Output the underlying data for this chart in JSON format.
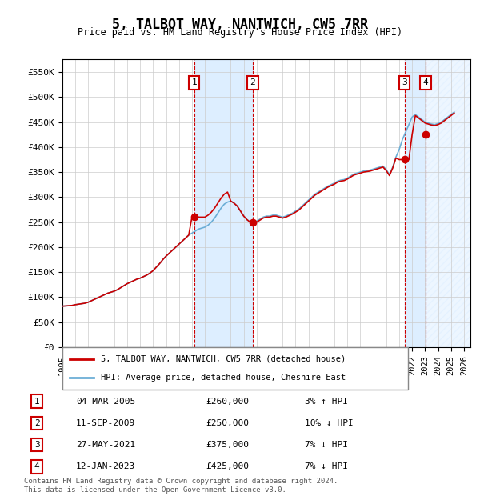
{
  "title": "5, TALBOT WAY, NANTWICH, CW5 7RR",
  "subtitle": "Price paid vs. HM Land Registry's House Price Index (HPI)",
  "ylabel": "",
  "ylim": [
    0,
    575000
  ],
  "yticks": [
    0,
    50000,
    100000,
    150000,
    200000,
    250000,
    300000,
    350000,
    400000,
    450000,
    500000,
    550000
  ],
  "ytick_labels": [
    "£0",
    "£50K",
    "£100K",
    "£150K",
    "£200K",
    "£250K",
    "£300K",
    "£350K",
    "£400K",
    "£450K",
    "£500K",
    "£550K"
  ],
  "xlim_start": 1995.0,
  "xlim_end": 2026.5,
  "xtick_years": [
    1995,
    1996,
    1997,
    1998,
    1999,
    2000,
    2001,
    2002,
    2003,
    2004,
    2005,
    2006,
    2007,
    2008,
    2009,
    2010,
    2011,
    2012,
    2013,
    2014,
    2015,
    2016,
    2017,
    2018,
    2019,
    2020,
    2021,
    2022,
    2023,
    2024,
    2025,
    2026
  ],
  "hpi_color": "#6baed6",
  "price_color": "#cc0000",
  "sale_marker_color": "#cc0000",
  "grid_color": "#cccccc",
  "background_color": "#ffffff",
  "sale_highlight_color": "#ddeeff",
  "legend_label_price": "5, TALBOT WAY, NANTWICH, CW5 7RR (detached house)",
  "legend_label_hpi": "HPI: Average price, detached house, Cheshire East",
  "transactions": [
    {
      "num": 1,
      "date": "04-MAR-2005",
      "year": 2005.17,
      "price": 260000,
      "hpi_pct": "3%",
      "dir": "↑"
    },
    {
      "num": 2,
      "date": "11-SEP-2009",
      "year": 2009.69,
      "price": 250000,
      "hpi_pct": "10%",
      "dir": "↓"
    },
    {
      "num": 3,
      "date": "27-MAY-2021",
      "year": 2021.41,
      "price": 375000,
      "hpi_pct": "7%",
      "dir": "↓"
    },
    {
      "num": 4,
      "date": "12-JAN-2023",
      "year": 2023.04,
      "price": 425000,
      "hpi_pct": "7%",
      "dir": "↓"
    }
  ],
  "footer": "Contains HM Land Registry data © Crown copyright and database right 2024.\nThis data is licensed under the Open Government Licence v3.0.",
  "hpi_data_x": [
    1995.0,
    1995.25,
    1995.5,
    1995.75,
    1996.0,
    1996.25,
    1996.5,
    1996.75,
    1997.0,
    1997.25,
    1997.5,
    1997.75,
    1998.0,
    1998.25,
    1998.5,
    1998.75,
    1999.0,
    1999.25,
    1999.5,
    1999.75,
    2000.0,
    2000.25,
    2000.5,
    2000.75,
    2001.0,
    2001.25,
    2001.5,
    2001.75,
    2002.0,
    2002.25,
    2002.5,
    2002.75,
    2003.0,
    2003.25,
    2003.5,
    2003.75,
    2004.0,
    2004.25,
    2004.5,
    2004.75,
    2005.0,
    2005.25,
    2005.5,
    2005.75,
    2006.0,
    2006.25,
    2006.5,
    2006.75,
    2007.0,
    2007.25,
    2007.5,
    2007.75,
    2008.0,
    2008.25,
    2008.5,
    2008.75,
    2009.0,
    2009.25,
    2009.5,
    2009.75,
    2010.0,
    2010.25,
    2010.5,
    2010.75,
    2011.0,
    2011.25,
    2011.5,
    2011.75,
    2012.0,
    2012.25,
    2012.5,
    2012.75,
    2013.0,
    2013.25,
    2013.5,
    2013.75,
    2014.0,
    2014.25,
    2014.5,
    2014.75,
    2015.0,
    2015.25,
    2015.5,
    2015.75,
    2016.0,
    2016.25,
    2016.5,
    2016.75,
    2017.0,
    2017.25,
    2017.5,
    2017.75,
    2018.0,
    2018.25,
    2018.5,
    2018.75,
    2019.0,
    2019.25,
    2019.5,
    2019.75,
    2020.0,
    2020.25,
    2020.5,
    2020.75,
    2021.0,
    2021.25,
    2021.5,
    2021.75,
    2022.0,
    2022.25,
    2022.5,
    2022.75,
    2023.0,
    2023.25,
    2023.5,
    2023.75,
    2024.0,
    2024.25,
    2024.5,
    2024.75,
    2025.0,
    2025.25
  ],
  "hpi_data_y": [
    82000,
    82500,
    83000,
    83500,
    85000,
    86000,
    87000,
    88000,
    90000,
    93000,
    96000,
    99000,
    102000,
    105000,
    108000,
    110000,
    112000,
    115000,
    119000,
    123000,
    127000,
    130000,
    133000,
    136000,
    138000,
    141000,
    144000,
    148000,
    153000,
    160000,
    167000,
    175000,
    182000,
    188000,
    194000,
    200000,
    206000,
    212000,
    218000,
    224000,
    228000,
    232000,
    236000,
    238000,
    240000,
    244000,
    250000,
    258000,
    268000,
    278000,
    286000,
    290000,
    292000,
    288000,
    282000,
    272000,
    262000,
    255000,
    250000,
    248000,
    252000,
    256000,
    260000,
    262000,
    262000,
    264000,
    264000,
    262000,
    260000,
    262000,
    265000,
    268000,
    272000,
    276000,
    282000,
    288000,
    294000,
    300000,
    306000,
    310000,
    314000,
    318000,
    322000,
    325000,
    328000,
    332000,
    334000,
    335000,
    338000,
    342000,
    346000,
    348000,
    350000,
    352000,
    353000,
    354000,
    356000,
    358000,
    360000,
    362000,
    355000,
    345000,
    360000,
    380000,
    395000,
    415000,
    430000,
    445000,
    460000,
    465000,
    460000,
    455000,
    450000,
    448000,
    446000,
    445000,
    447000,
    450000,
    455000,
    460000,
    465000,
    470000
  ],
  "price_data_x": [
    1995.0,
    1995.25,
    1995.5,
    1995.75,
    1996.0,
    1996.25,
    1996.5,
    1996.75,
    1997.0,
    1997.25,
    1997.5,
    1997.75,
    1998.0,
    1998.25,
    1998.5,
    1998.75,
    1999.0,
    1999.25,
    1999.5,
    1999.75,
    2000.0,
    2000.25,
    2000.5,
    2000.75,
    2001.0,
    2001.25,
    2001.5,
    2001.75,
    2002.0,
    2002.25,
    2002.5,
    2002.75,
    2003.0,
    2003.25,
    2003.5,
    2003.75,
    2004.0,
    2004.25,
    2004.5,
    2004.75,
    2005.0,
    2005.25,
    2005.5,
    2005.75,
    2006.0,
    2006.25,
    2006.5,
    2006.75,
    2007.0,
    2007.25,
    2007.5,
    2007.75,
    2008.0,
    2008.25,
    2008.5,
    2008.75,
    2009.0,
    2009.25,
    2009.5,
    2009.75,
    2010.0,
    2010.25,
    2010.5,
    2010.75,
    2011.0,
    2011.25,
    2011.5,
    2011.75,
    2012.0,
    2012.25,
    2012.5,
    2012.75,
    2013.0,
    2013.25,
    2013.5,
    2013.75,
    2014.0,
    2014.25,
    2014.5,
    2014.75,
    2015.0,
    2015.25,
    2015.5,
    2015.75,
    2016.0,
    2016.25,
    2016.5,
    2016.75,
    2017.0,
    2017.25,
    2017.5,
    2017.75,
    2018.0,
    2018.25,
    2018.5,
    2018.75,
    2019.0,
    2019.25,
    2019.5,
    2019.75,
    2020.0,
    2020.25,
    2020.5,
    2020.75,
    2021.0,
    2021.25,
    2021.5,
    2021.75,
    2022.0,
    2022.25,
    2022.5,
    2022.75,
    2023.0,
    2023.25,
    2023.5,
    2023.75,
    2024.0,
    2024.25,
    2024.5,
    2024.75,
    2025.0,
    2025.25
  ],
  "price_data_y": [
    82000,
    82500,
    83000,
    83500,
    85000,
    86000,
    87000,
    88000,
    90000,
    93000,
    96000,
    99000,
    102000,
    105000,
    108000,
    110000,
    112000,
    115000,
    119000,
    123000,
    127000,
    130000,
    133000,
    136000,
    138000,
    141000,
    144000,
    148000,
    153000,
    160000,
    167000,
    175000,
    182000,
    188000,
    194000,
    200000,
    206000,
    212000,
    218000,
    224000,
    260000,
    260000,
    260000,
    260000,
    260000,
    264000,
    270000,
    278000,
    288000,
    298000,
    306000,
    310000,
    292000,
    288000,
    282000,
    272000,
    262000,
    255000,
    250000,
    250000,
    250000,
    254000,
    258000,
    260000,
    260000,
    262000,
    262000,
    260000,
    258000,
    260000,
    263000,
    266000,
    270000,
    274000,
    280000,
    286000,
    292000,
    298000,
    304000,
    308000,
    312000,
    316000,
    320000,
    323000,
    326000,
    330000,
    332000,
    333000,
    336000,
    340000,
    344000,
    346000,
    348000,
    350000,
    351000,
    352000,
    354000,
    356000,
    358000,
    360000,
    353000,
    343000,
    358000,
    378000,
    375000,
    375000,
    375000,
    375000,
    425000,
    463000,
    458000,
    453000,
    448000,
    446000,
    444000,
    443000,
    445000,
    448000,
    453000,
    458000,
    463000,
    468000
  ]
}
